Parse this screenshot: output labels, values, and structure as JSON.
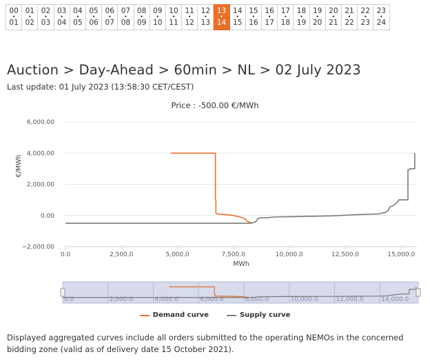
{
  "hours": [
    {
      "top": "00",
      "bottom": "01"
    },
    {
      "top": "01",
      "bottom": "02"
    },
    {
      "top": "02",
      "bottom": "03"
    },
    {
      "top": "03",
      "bottom": "04"
    },
    {
      "top": "04",
      "bottom": "05"
    },
    {
      "top": "05",
      "bottom": "06"
    },
    {
      "top": "06",
      "bottom": "07"
    },
    {
      "top": "07",
      "bottom": "08"
    },
    {
      "top": "08",
      "bottom": "09"
    },
    {
      "top": "09",
      "bottom": "10"
    },
    {
      "top": "10",
      "bottom": "11"
    },
    {
      "top": "11",
      "bottom": "12"
    },
    {
      "top": "12",
      "bottom": "13"
    },
    {
      "top": "13",
      "bottom": "14"
    },
    {
      "top": "14",
      "bottom": "15"
    },
    {
      "top": "15",
      "bottom": "16"
    },
    {
      "top": "16",
      "bottom": "17"
    },
    {
      "top": "17",
      "bottom": "18"
    },
    {
      "top": "18",
      "bottom": "19"
    },
    {
      "top": "19",
      "bottom": "20"
    },
    {
      "top": "20",
      "bottom": "21"
    },
    {
      "top": "21",
      "bottom": "22"
    },
    {
      "top": "22",
      "bottom": "23"
    },
    {
      "top": "23",
      "bottom": "24"
    }
  ],
  "active_hour_index": 13,
  "page": {
    "title": "Auction > Day-Ahead > 60min > NL > 02 July 2023",
    "last_update": "Last update: 01 July 2023 (13:58:30 CET/CEST)",
    "footnote": "Displayed aggregated curves include all orders submitted to the operating NEMOs in the concerned bidding zone (valid as of delivery date 15 October 2021)."
  },
  "colors": {
    "demand": "#e8702a",
    "supply": "#7a7a7a",
    "active_hour": "#e8702a",
    "navigator": "#c9cfe6"
  },
  "chart_data": {
    "type": "line",
    "title": "Price : -500.00 €/MWh",
    "xlabel": "MWh",
    "ylabel": "€/MWh",
    "xlim": [
      0,
      15700
    ],
    "ylim": [
      -2000,
      6000
    ],
    "x_ticks": [
      "0.0",
      "2,500.0",
      "5,000.0",
      "7,500.0",
      "10,000.0",
      "12,500.0",
      "15,000.0"
    ],
    "y_ticks": [
      "6,000.00",
      "4,000.00",
      "2,000.00",
      "0.00",
      "−2,000.00"
    ],
    "navigator_ticks": [
      "0.0",
      "2,000.0",
      "4,000.0",
      "6,000.0",
      "8,000.0",
      "10,000.0",
      "12,000.0",
      "14,000.0"
    ],
    "grid": "horizontal",
    "legend_position": "bottom-center",
    "series": [
      {
        "name": "Demand curve",
        "x": [
          4700,
          6700,
          6700,
          6720,
          6720,
          6800,
          6900,
          7200,
          7500,
          7800,
          8000,
          8100,
          8300
        ],
        "y": [
          4000,
          4000,
          1000,
          1000,
          150,
          100,
          80,
          50,
          0,
          -100,
          -200,
          -350,
          -480
        ]
      },
      {
        "name": "Supply curve",
        "x": [
          0,
          8300,
          8500,
          8600,
          8700,
          9000,
          9300,
          10000,
          11000,
          12000,
          13000,
          14000,
          14300,
          14400,
          14500,
          14600,
          14700,
          14800,
          14900,
          15000,
          15300,
          15300,
          15400,
          15400,
          15600,
          15600
        ],
        "y": [
          -500,
          -500,
          -400,
          -200,
          -150,
          -150,
          -100,
          -80,
          -50,
          -20,
          50,
          100,
          200,
          300,
          550,
          600,
          700,
          800,
          1000,
          1000,
          1000,
          2900,
          3000,
          3000,
          3000,
          4000
        ]
      }
    ]
  }
}
